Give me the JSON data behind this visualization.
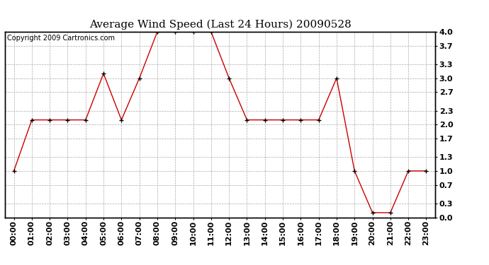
{
  "title": "Average Wind Speed (Last 24 Hours) 20090528",
  "copyright_text": "Copyright 2009 Cartronics.com",
  "hours": [
    0,
    1,
    2,
    3,
    4,
    5,
    6,
    7,
    8,
    9,
    10,
    11,
    12,
    13,
    14,
    15,
    16,
    17,
    18,
    19,
    20,
    21,
    22,
    23
  ],
  "values": [
    1.0,
    2.1,
    2.1,
    2.1,
    2.1,
    3.1,
    2.1,
    3.0,
    4.0,
    4.0,
    4.0,
    4.0,
    3.0,
    2.1,
    2.1,
    2.1,
    2.1,
    2.1,
    3.0,
    1.0,
    0.1,
    0.1,
    1.0,
    1.0
  ],
  "ylim": [
    0.0,
    4.0
  ],
  "yticks": [
    0.0,
    0.3,
    0.7,
    1.0,
    1.3,
    1.7,
    2.0,
    2.3,
    2.7,
    3.0,
    3.3,
    3.7,
    4.0
  ],
  "line_color": "#cc0000",
  "marker": "+",
  "marker_color": "#000000",
  "bg_color": "#ffffff",
  "grid_color": "#aaaaaa",
  "title_fontsize": 11,
  "tick_label_fontsize": 8,
  "copyright_fontsize": 7
}
